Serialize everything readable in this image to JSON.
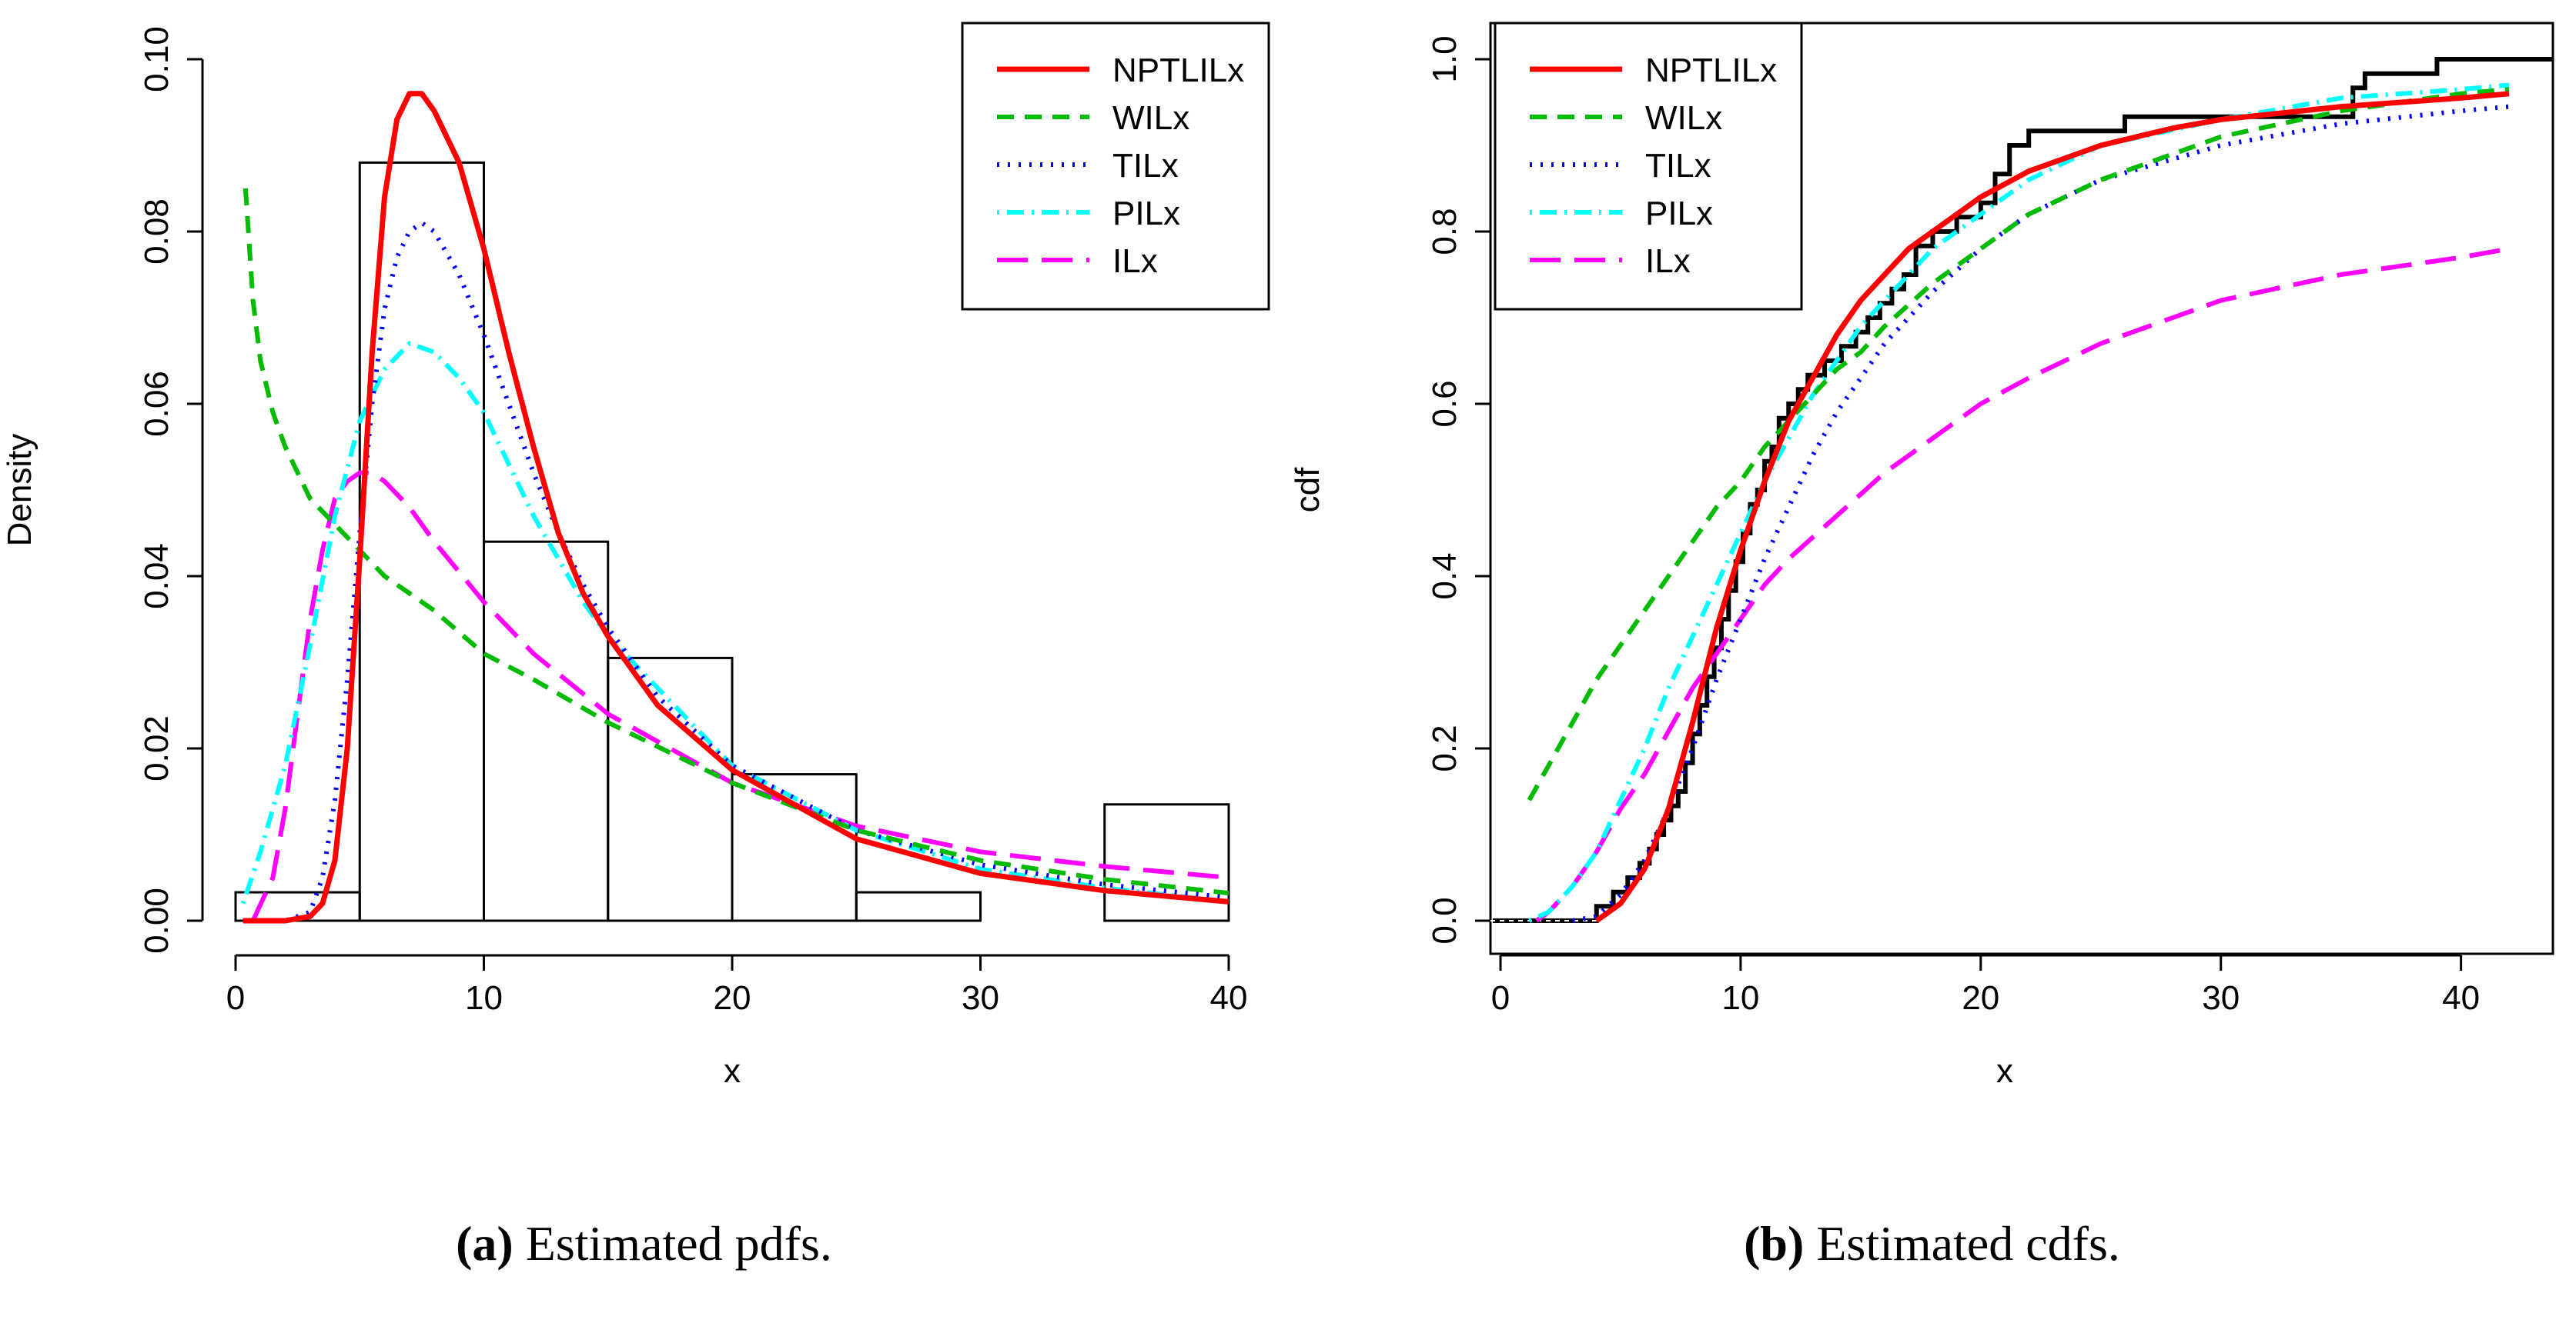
{
  "legend_colors": {
    "NPTLILx": "#ff0000",
    "WILx": "#00bb00",
    "TILx": "#0000ff",
    "PILx": "#00ffff",
    "ILx": "#ff00ff"
  },
  "captions": [
    {
      "label": "(a)",
      "text": "Estimated pdfs."
    },
    {
      "label": "(b)",
      "text": "Estimated cdfs."
    }
  ],
  "chart_data": [
    {
      "type": "line",
      "xlabel": "x",
      "ylabel": "Density",
      "xlim": [
        0,
        40
      ],
      "ylim": [
        0,
        0.1
      ],
      "xticks": [
        "0",
        "10",
        "20",
        "30",
        "40"
      ],
      "yticks": [
        "0.00",
        "0.02",
        "0.04",
        "0.06",
        "0.08",
        "0.10"
      ],
      "legend_position": "top-right",
      "histogram": {
        "bins": [
          [
            0,
            5
          ],
          [
            5,
            10
          ],
          [
            10,
            15
          ],
          [
            15,
            20
          ],
          [
            20,
            25
          ],
          [
            25,
            30
          ],
          [
            30,
            35
          ],
          [
            35,
            40
          ]
        ],
        "values": [
          0.0033,
          0.088,
          0.044,
          0.0305,
          0.017,
          0.0033,
          0.0,
          0.0135
        ]
      },
      "series": [
        {
          "name": "NPTLILx",
          "style": "solid",
          "x": [
            0.3,
            2,
            3,
            3.5,
            4,
            4.5,
            5,
            5.5,
            6,
            6.5,
            7,
            7.5,
            8,
            9,
            10,
            11,
            12,
            13,
            14,
            15,
            17,
            20,
            25,
            30,
            35,
            40
          ],
          "y": [
            0,
            0,
            0.0005,
            0.002,
            0.007,
            0.02,
            0.042,
            0.066,
            0.084,
            0.093,
            0.096,
            0.096,
            0.094,
            0.088,
            0.078,
            0.066,
            0.055,
            0.045,
            0.038,
            0.033,
            0.025,
            0.0175,
            0.0095,
            0.0055,
            0.0035,
            0.0022
          ]
        },
        {
          "name": "WILx",
          "style": "dashed",
          "x": [
            0.4,
            0.7,
            1,
            1.5,
            2,
            3,
            4,
            5,
            6,
            7,
            8,
            10,
            12,
            15,
            20,
            25,
            30,
            35,
            40
          ],
          "y": [
            0.085,
            0.072,
            0.065,
            0.059,
            0.055,
            0.049,
            0.046,
            0.043,
            0.04,
            0.038,
            0.036,
            0.031,
            0.028,
            0.023,
            0.016,
            0.0105,
            0.007,
            0.0048,
            0.0032
          ]
        },
        {
          "name": "TILx",
          "style": "dotted",
          "x": [
            0.3,
            2,
            3,
            3.5,
            4,
            4.5,
            5,
            5.5,
            6,
            6.5,
            7,
            7.5,
            8,
            9,
            10,
            11,
            12,
            13,
            14,
            15,
            17,
            20,
            25,
            30,
            35,
            40
          ],
          "y": [
            0,
            0,
            0.001,
            0.005,
            0.014,
            0.028,
            0.045,
            0.06,
            0.071,
            0.077,
            0.08,
            0.081,
            0.08,
            0.075,
            0.068,
            0.06,
            0.052,
            0.045,
            0.039,
            0.034,
            0.026,
            0.018,
            0.0105,
            0.0065,
            0.0042,
            0.0027
          ]
        },
        {
          "name": "PILx",
          "style": "dotdash",
          "x": [
            0.3,
            1,
            2,
            3,
            4,
            5,
            6,
            7,
            8,
            9,
            10,
            11,
            12,
            13,
            14,
            15,
            17,
            20,
            25,
            30,
            35,
            40
          ],
          "y": [
            0.002,
            0.008,
            0.018,
            0.032,
            0.047,
            0.058,
            0.064,
            0.067,
            0.066,
            0.063,
            0.059,
            0.053,
            0.047,
            0.042,
            0.037,
            0.033,
            0.027,
            0.018,
            0.0105,
            0.006,
            0.0038,
            0.0022
          ]
        },
        {
          "name": "ILx",
          "style": "longdash",
          "x": [
            0.7,
            1.5,
            2,
            2.5,
            3,
            3.5,
            4,
            4.5,
            5,
            5.5,
            6,
            7,
            8,
            10,
            12,
            15,
            20,
            25,
            30,
            35,
            40
          ],
          "y": [
            0,
            0.005,
            0.013,
            0.024,
            0.035,
            0.043,
            0.049,
            0.051,
            0.052,
            0.052,
            0.051,
            0.048,
            0.044,
            0.037,
            0.031,
            0.024,
            0.016,
            0.011,
            0.008,
            0.0063,
            0.005
          ]
        }
      ]
    },
    {
      "type": "line",
      "xlabel": "x",
      "ylabel": "cdf",
      "xlim": [
        0,
        42
      ],
      "ylim": [
        0,
        1
      ],
      "xticks": [
        "0",
        "10",
        "20",
        "30",
        "40"
      ],
      "yticks": [
        "0.0",
        "0.2",
        "0.4",
        "0.6",
        "0.8",
        "1.0"
      ],
      "legend_position": "top-left",
      "empirical_cdf": {
        "x": [
          4,
          4.7,
          5.3,
          5.8,
          6.2,
          6.5,
          6.8,
          7.1,
          7.4,
          7.7,
          8,
          8.3,
          8.6,
          8.9,
          9.2,
          9.5,
          9.8,
          10.1,
          10.4,
          10.7,
          11,
          11.3,
          11.6,
          12,
          12.4,
          12.8,
          13.5,
          14.2,
          14.8,
          15.3,
          15.8,
          16.3,
          16.8,
          17.3,
          18,
          19,
          20,
          20.6,
          21.2,
          22,
          26,
          35.5,
          36,
          39,
          42
        ],
        "y": [
          0.0167,
          0.0333,
          0.05,
          0.0667,
          0.0833,
          0.1,
          0.1167,
          0.1333,
          0.15,
          0.1833,
          0.2167,
          0.25,
          0.2833,
          0.3167,
          0.35,
          0.3833,
          0.4167,
          0.45,
          0.4833,
          0.5,
          0.5333,
          0.55,
          0.5833,
          0.6,
          0.6167,
          0.6333,
          0.65,
          0.6667,
          0.6833,
          0.7,
          0.7167,
          0.7333,
          0.75,
          0.7833,
          0.8,
          0.8167,
          0.8333,
          0.8667,
          0.9,
          0.9167,
          0.9333,
          0.9667,
          0.9833,
          1.0,
          1.0
        ]
      },
      "series": [
        {
          "name": "NPTLILx",
          "style": "solid",
          "x": [
            4,
            5,
            6,
            7,
            8,
            9,
            10,
            11,
            12,
            13,
            14,
            15,
            16,
            17,
            18,
            20,
            22,
            25,
            28,
            30,
            35,
            40,
            42
          ],
          "y": [
            0,
            0.02,
            0.06,
            0.13,
            0.23,
            0.34,
            0.43,
            0.51,
            0.58,
            0.63,
            0.68,
            0.72,
            0.75,
            0.78,
            0.8,
            0.84,
            0.87,
            0.9,
            0.92,
            0.93,
            0.945,
            0.955,
            0.96
          ]
        },
        {
          "name": "WILx",
          "style": "dashed",
          "x": [
            1.2,
            2,
            3,
            4,
            5,
            6,
            7,
            8,
            9,
            10,
            11,
            12,
            13,
            14,
            15,
            16,
            18,
            20,
            22,
            25,
            30,
            35,
            40,
            42
          ],
          "y": [
            0.14,
            0.18,
            0.23,
            0.28,
            0.32,
            0.36,
            0.4,
            0.44,
            0.48,
            0.51,
            0.55,
            0.58,
            0.61,
            0.64,
            0.66,
            0.69,
            0.74,
            0.78,
            0.82,
            0.86,
            0.91,
            0.94,
            0.96,
            0.965
          ]
        },
        {
          "name": "TILx",
          "style": "dotted",
          "x": [
            3,
            4,
            5,
            6,
            7,
            8,
            9,
            10,
            11,
            12,
            13,
            14,
            15,
            16,
            18,
            20,
            22,
            25,
            30,
            35,
            40,
            42
          ],
          "y": [
            0,
            0.005,
            0.03,
            0.07,
            0.13,
            0.2,
            0.28,
            0.35,
            0.42,
            0.48,
            0.54,
            0.59,
            0.63,
            0.67,
            0.73,
            0.78,
            0.82,
            0.86,
            0.9,
            0.925,
            0.94,
            0.945
          ]
        },
        {
          "name": "PILx",
          "style": "dotdash",
          "x": [
            1.2,
            2,
            3,
            4,
            5,
            6,
            7,
            8,
            9,
            10,
            11,
            12,
            13,
            14,
            15,
            16,
            18,
            20,
            22,
            25,
            30,
            35,
            40,
            42
          ],
          "y": [
            0,
            0.01,
            0.04,
            0.08,
            0.14,
            0.2,
            0.27,
            0.33,
            0.39,
            0.45,
            0.51,
            0.56,
            0.61,
            0.65,
            0.69,
            0.72,
            0.78,
            0.82,
            0.86,
            0.9,
            0.93,
            0.955,
            0.965,
            0.97
          ]
        },
        {
          "name": "ILx",
          "style": "longdash",
          "x": [
            1.5,
            2,
            3,
            4,
            5,
            6,
            7,
            8,
            9,
            10,
            11,
            12,
            14,
            16,
            18,
            20,
            22,
            25,
            30,
            35,
            40,
            42
          ],
          "y": [
            0,
            0.01,
            0.04,
            0.08,
            0.13,
            0.17,
            0.22,
            0.27,
            0.31,
            0.35,
            0.39,
            0.42,
            0.47,
            0.52,
            0.56,
            0.6,
            0.63,
            0.67,
            0.72,
            0.75,
            0.77,
            0.78
          ]
        }
      ]
    }
  ]
}
